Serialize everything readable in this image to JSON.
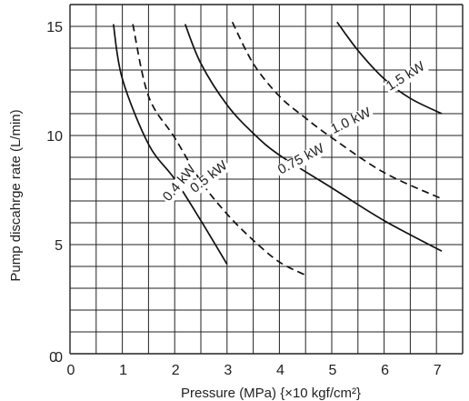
{
  "chart_data": {
    "type": "line",
    "xlabel": "Pressure (MPa) {×10 kgf/cm²}",
    "ylabel": "Pump discahrge rate (L/min)",
    "xlim": [
      0,
      7.5
    ],
    "ylim": [
      0,
      16
    ],
    "x_ticks": [
      "0",
      "1",
      "2",
      "3",
      "4",
      "5",
      "6",
      "7"
    ],
    "y_ticks": [
      "0",
      "5",
      "10",
      "15"
    ],
    "origin_label": "0",
    "grid": true,
    "x_minor_step": 0.5,
    "y_minor_step": 1,
    "series": [
      {
        "name": "0.4 kW",
        "dash": false,
        "points": [
          [
            0.83,
            15.1
          ],
          [
            1.0,
            12.6
          ],
          [
            1.5,
            9.6
          ],
          [
            2.0,
            8.0
          ],
          [
            2.5,
            6.1
          ],
          [
            3.0,
            4.1
          ]
        ]
      },
      {
        "name": "0.5 kW",
        "dash": true,
        "points": [
          [
            1.2,
            15.1
          ],
          [
            1.5,
            11.8
          ],
          [
            2.0,
            9.9
          ],
          [
            2.5,
            7.9
          ],
          [
            3.0,
            6.4
          ],
          [
            3.5,
            5.2
          ],
          [
            4.0,
            4.2
          ],
          [
            4.5,
            3.6
          ]
        ]
      },
      {
        "name": "0.75 kW",
        "dash": false,
        "points": [
          [
            2.2,
            15.1
          ],
          [
            2.5,
            13.3
          ],
          [
            3.0,
            11.4
          ],
          [
            3.5,
            10.1
          ],
          [
            4.0,
            9.1
          ],
          [
            5.0,
            7.6
          ],
          [
            6.0,
            6.1
          ],
          [
            7.1,
            4.7
          ]
        ]
      },
      {
        "name": "1.0 kW",
        "dash": true,
        "points": [
          [
            3.1,
            15.2
          ],
          [
            3.5,
            13.3
          ],
          [
            4.0,
            11.8
          ],
          [
            4.5,
            10.8
          ],
          [
            5.0,
            9.9
          ],
          [
            6.0,
            8.3
          ],
          [
            7.1,
            7.1
          ]
        ]
      },
      {
        "name": "1.5 kW",
        "dash": false,
        "points": [
          [
            5.1,
            15.2
          ],
          [
            5.5,
            13.9
          ],
          [
            6.0,
            12.6
          ],
          [
            6.5,
            11.7
          ],
          [
            7.1,
            11.0
          ]
        ]
      }
    ],
    "curve_labels": [
      {
        "text": "0.4 kW",
        "x": 2.15,
        "y": 7.7,
        "angle": -50
      },
      {
        "text": "0.5 kW",
        "x": 2.7,
        "y": 7.95,
        "angle": -38
      },
      {
        "text": "0.75 kW",
        "x": 4.45,
        "y": 8.75,
        "angle": -28
      },
      {
        "text": "1.0 kW",
        "x": 5.4,
        "y": 10.5,
        "angle": -26
      },
      {
        "text": "1.5 kW",
        "x": 6.45,
        "y": 12.55,
        "angle": -32
      }
    ]
  }
}
